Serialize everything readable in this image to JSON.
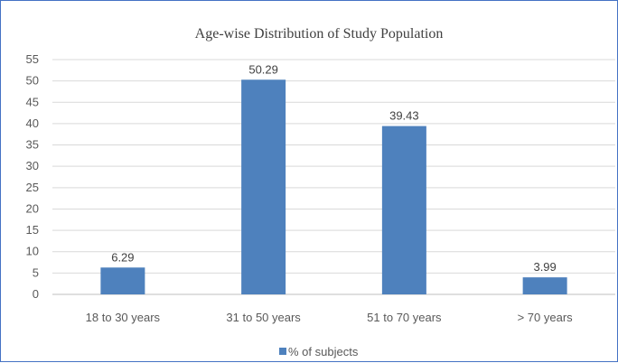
{
  "chart_data": {
    "type": "bar",
    "title": "Age-wise Distribution of Study Population",
    "categories": [
      "18 to 30 years",
      "31 to 50 years",
      "51 to 70 years",
      "> 70 years"
    ],
    "series": [
      {
        "name": "% of subjects",
        "values": [
          6.29,
          50.29,
          39.43,
          3.99
        ],
        "color": "#4e81bd"
      }
    ],
    "data_labels": [
      "6.29",
      "50.29",
      "39.43",
      "3.99"
    ],
    "ylim": [
      0,
      55
    ],
    "yticks": [
      0,
      5,
      10,
      15,
      20,
      25,
      30,
      35,
      40,
      45,
      50,
      55
    ],
    "grid": true,
    "legend_position": "bottom",
    "xlabel": "",
    "ylabel": ""
  }
}
